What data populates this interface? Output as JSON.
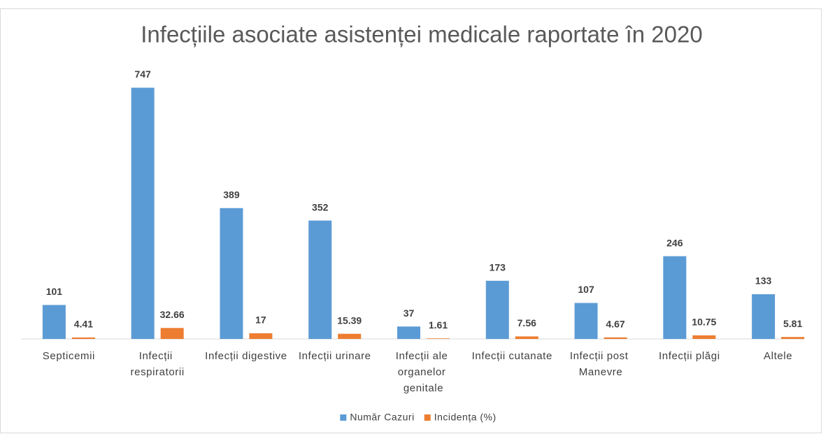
{
  "chart_data": {
    "type": "bar",
    "title": "Infecțiile asociate asistenței medicale raportate în 2020",
    "categories": [
      "Septicemii",
      "Infecții respiratorii",
      "Infecții digestive",
      "Infecții urinare",
      "Infecții ale organelor genitale",
      "Infecții cutanate",
      "Infecții post Manevre",
      "Infecții plăgi",
      "Altele"
    ],
    "series": [
      {
        "name": "Număr Cazuri",
        "color": "#5b9bd5",
        "values": [
          101,
          747,
          389,
          352,
          37,
          173,
          107,
          246,
          133
        ]
      },
      {
        "name": "Incidența (%)",
        "color": "#ed7d31",
        "values": [
          4.41,
          32.66,
          17,
          15.39,
          1.61,
          7.56,
          4.67,
          10.75,
          5.81
        ]
      }
    ],
    "ylim": [
      0,
      800
    ],
    "legend": "bottom"
  }
}
